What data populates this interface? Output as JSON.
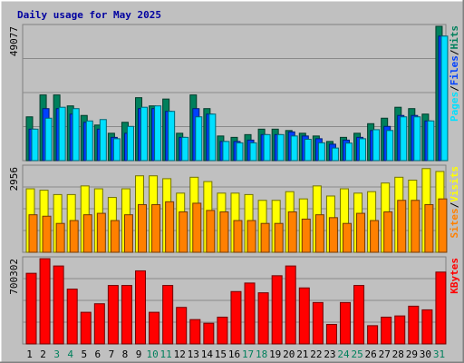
{
  "chart_data": [
    {
      "type": "bar",
      "title": "Daily usage for May 2025",
      "panel": "hits-files-pages",
      "ymax": 49077,
      "ymax_label": "49077",
      "legend": [
        {
          "label": "Pages",
          "color": "#00e0ff"
        },
        {
          "label": "Files",
          "color": "#0040ff"
        },
        {
          "label": "Hits",
          "color": "#00805c"
        }
      ],
      "legend_separator": "/",
      "categories": [
        "1",
        "2",
        "3",
        "4",
        "5",
        "6",
        "7",
        "8",
        "9",
        "10",
        "11",
        "12",
        "13",
        "14",
        "15",
        "16",
        "17",
        "18",
        "19",
        "20",
        "21",
        "22",
        "23",
        "24",
        "25",
        "26",
        "27",
        "28",
        "29",
        "30",
        "31"
      ],
      "weekend_days": [
        "3",
        "4",
        "10",
        "11",
        "17",
        "18",
        "24",
        "25",
        "31"
      ],
      "series": [
        {
          "name": "Hits",
          "color": "#00805c",
          "values": [
            16000,
            24000,
            24000,
            20000,
            16500,
            13000,
            10000,
            14000,
            23000,
            20000,
            22500,
            10000,
            24000,
            19000,
            9000,
            8500,
            9500,
            11500,
            11500,
            11000,
            10000,
            9000,
            7000,
            8500,
            10000,
            13500,
            15500,
            19500,
            19000,
            17000,
            49077
          ]
        },
        {
          "name": "Files",
          "color": "#0040ff",
          "values": [
            11500,
            19000,
            19000,
            17000,
            14000,
            11500,
            8500,
            10000,
            19000,
            19000,
            18000,
            8500,
            19000,
            17000,
            7000,
            7000,
            7500,
            9500,
            9500,
            10500,
            9000,
            8000,
            6000,
            7500,
            8500,
            11000,
            12500,
            16500,
            16500,
            14500,
            45500
          ]
        },
        {
          "name": "Pages",
          "color": "#00e0ff",
          "values": [
            11500,
            15500,
            19500,
            19000,
            14500,
            15000,
            8000,
            12500,
            19500,
            20000,
            18000,
            8500,
            16000,
            17000,
            7000,
            6500,
            6500,
            9500,
            9500,
            9000,
            7800,
            6500,
            4600,
            6400,
            8000,
            11300,
            11000,
            16000,
            16000,
            14500,
            45500
          ]
        }
      ]
    },
    {
      "type": "bar",
      "panel": "visits-sites",
      "ymax": 2956,
      "ymax_label": "2956",
      "legend": [
        {
          "label": "Sites",
          "color": "#ff8000"
        },
        {
          "label": "Visits",
          "color": "#ffff00"
        }
      ],
      "legend_separator": "/",
      "categories": [
        "1",
        "2",
        "3",
        "4",
        "5",
        "6",
        "7",
        "8",
        "9",
        "10",
        "11",
        "12",
        "13",
        "14",
        "15",
        "16",
        "17",
        "18",
        "19",
        "20",
        "21",
        "22",
        "23",
        "24",
        "25",
        "26",
        "27",
        "28",
        "29",
        "30",
        "31"
      ],
      "series": [
        {
          "name": "Visits",
          "color": "#ffff00",
          "values": [
            2200,
            2150,
            2000,
            2000,
            2300,
            2200,
            1900,
            2200,
            2650,
            2650,
            2550,
            2050,
            2600,
            2450,
            2050,
            2050,
            2000,
            1800,
            1800,
            2100,
            1850,
            2300,
            1950,
            2200,
            2050,
            2100,
            2400,
            2600,
            2500,
            2900,
            2800
          ]
        },
        {
          "name": "Sites",
          "color": "#ff8000",
          "values": [
            1300,
            1250,
            1000,
            1100,
            1300,
            1350,
            1100,
            1300,
            1650,
            1650,
            1750,
            1400,
            1700,
            1450,
            1400,
            1100,
            1100,
            1000,
            1000,
            1400,
            1150,
            1300,
            1200,
            1000,
            1350,
            1100,
            1400,
            1800,
            1800,
            1650,
            1850
          ]
        }
      ]
    },
    {
      "type": "bar",
      "panel": "kbytes",
      "ymax": 700302,
      "ymax_label": "700302",
      "legend": [
        {
          "label": "KBytes",
          "color": "#ff0000"
        }
      ],
      "categories": [
        "1",
        "2",
        "3",
        "4",
        "5",
        "6",
        "7",
        "8",
        "9",
        "10",
        "11",
        "12",
        "13",
        "14",
        "15",
        "16",
        "17",
        "18",
        "19",
        "20",
        "21",
        "22",
        "23",
        "24",
        "25",
        "26",
        "27",
        "28",
        "29",
        "30",
        "31"
      ],
      "series": [
        {
          "name": "KBytes",
          "color": "#ff0000",
          "values": [
            580000,
            700000,
            640000,
            450000,
            260000,
            330000,
            480000,
            480000,
            600000,
            260000,
            480000,
            300000,
            200000,
            170000,
            220000,
            430000,
            500000,
            420000,
            560000,
            640000,
            460000,
            340000,
            160000,
            340000,
            480000,
            150000,
            220000,
            230000,
            310000,
            280000,
            590000
          ]
        }
      ]
    }
  ]
}
